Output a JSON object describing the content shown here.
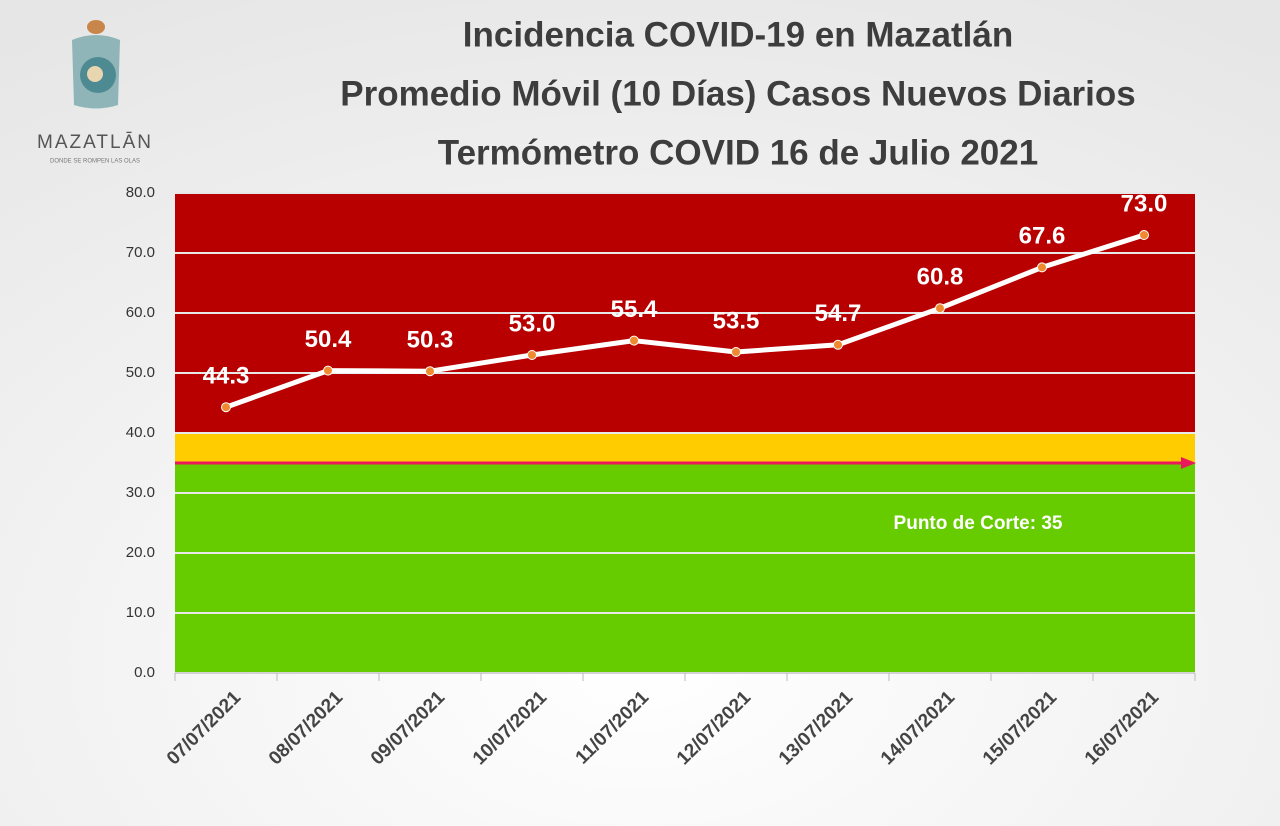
{
  "logo": {
    "name": "MAZATLĀN",
    "tagline": "DONDE SE ROMPEN LAS OLAS"
  },
  "chart_data": {
    "type": "line",
    "title": [
      "Incidencia COVID-19 en Mazatlán",
      "Promedio Móvil (10 Días) Casos Nuevos Diarios",
      "Termómetro COVID 16 de Julio 2021"
    ],
    "categories": [
      "07/07/2021",
      "08/07/2021",
      "09/07/2021",
      "10/07/2021",
      "11/07/2021",
      "12/07/2021",
      "13/07/2021",
      "14/07/2021",
      "15/07/2021",
      "16/07/2021"
    ],
    "values": [
      44.3,
      50.4,
      50.3,
      53.0,
      55.4,
      53.5,
      54.7,
      60.8,
      67.6,
      73.0
    ],
    "value_labels": [
      "44.3",
      "50.4",
      "50.3",
      "53.0",
      "55.4",
      "53.5",
      "54.7",
      "60.8",
      "67.6",
      "73.0"
    ],
    "color": "#ffffff",
    "marker_color": "#f08a30",
    "ylim": [
      0,
      80
    ],
    "yticks": [
      {
        "value": 0,
        "label": "0.0"
      },
      {
        "value": 10,
        "label": "10.0"
      },
      {
        "value": 20,
        "label": "20.0"
      },
      {
        "value": 30,
        "label": "30.0"
      },
      {
        "value": 40,
        "label": "40.0"
      },
      {
        "value": 50,
        "label": "50.0"
      },
      {
        "value": 60,
        "label": "60.0"
      },
      {
        "value": 70,
        "label": "70.0"
      },
      {
        "value": 80,
        "label": "80.0"
      }
    ],
    "grid": true,
    "bands": [
      {
        "from": 0,
        "to": 35,
        "color": "#66cc00"
      },
      {
        "from": 35,
        "to": 40,
        "color": "#ffcc00"
      },
      {
        "from": 40,
        "to": 80,
        "color": "#b80000"
      }
    ],
    "threshold": {
      "value": 35,
      "label": "Punto de Corte: 35",
      "color": "#e8185a"
    }
  }
}
